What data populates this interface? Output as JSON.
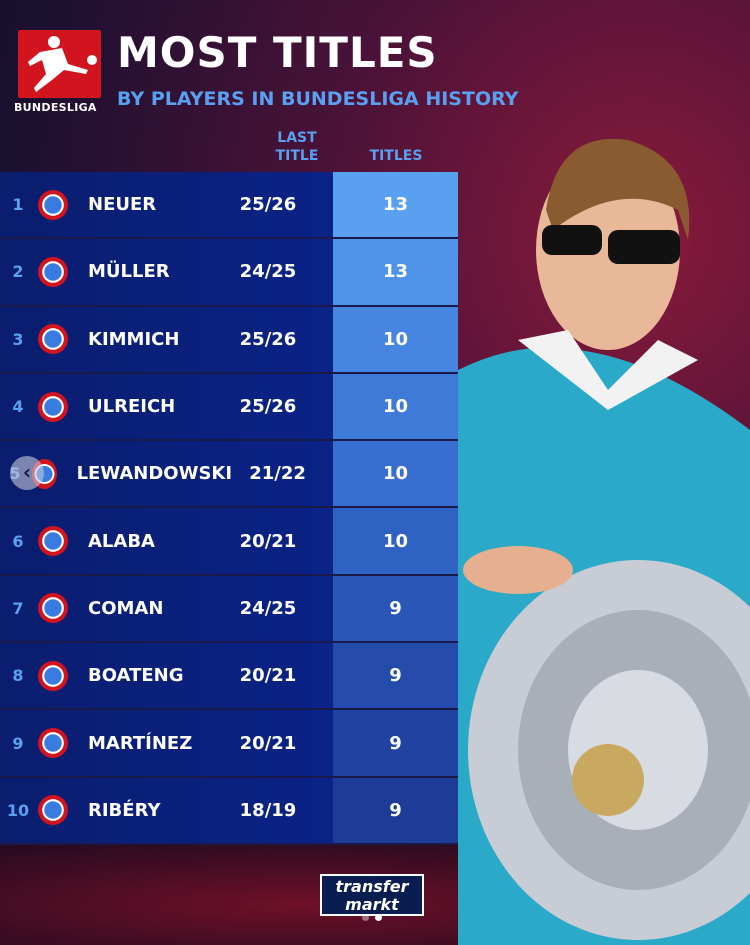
{
  "header": {
    "title": "MOST TITLES",
    "subtitle": "BY PLAYERS IN BUNDESLIGA HISTORY",
    "logo_text": "BUNDESLIGA"
  },
  "columns": {
    "last_title": [
      "LAST",
      "TITLE"
    ],
    "titles": "TITLES"
  },
  "rows": [
    {
      "rank": "1",
      "name": "NEUER",
      "last": "25/26",
      "titles": "13",
      "color": "#5aa0f0"
    },
    {
      "rank": "2",
      "name": "MÜLLER",
      "last": "24/25",
      "titles": "13",
      "color": "#4f93e8"
    },
    {
      "rank": "3",
      "name": "KIMMICH",
      "last": "25/26",
      "titles": "10",
      "color": "#4786e0"
    },
    {
      "rank": "4",
      "name": "ULREICH",
      "last": "25/26",
      "titles": "10",
      "color": "#3f7ad8"
    },
    {
      "rank": "5",
      "name": "LEWANDOWSKI",
      "last": "21/22",
      "titles": "10",
      "color": "#386ed0"
    },
    {
      "rank": "6",
      "name": "ALABA",
      "last": "20/21",
      "titles": "10",
      "color": "#3062c4"
    },
    {
      "rank": "7",
      "name": "COMAN",
      "last": "24/25",
      "titles": "9",
      "color": "#2a56b8"
    },
    {
      "rank": "8",
      "name": "BOATENG",
      "last": "20/21",
      "titles": "9",
      "color": "#254cac"
    },
    {
      "rank": "9",
      "name": "MARTÍNEZ",
      "last": "20/21",
      "titles": "9",
      "color": "#2043a2"
    },
    {
      "rank": "10",
      "name": "RIBÉRY",
      "last": "18/19",
      "titles": "9",
      "color": "#1d3c98"
    }
  ],
  "brand": {
    "top": "transfer",
    "bottom": "markt"
  },
  "carousel": {
    "back_icon": "chevron-left-icon",
    "active_dot": 2
  }
}
